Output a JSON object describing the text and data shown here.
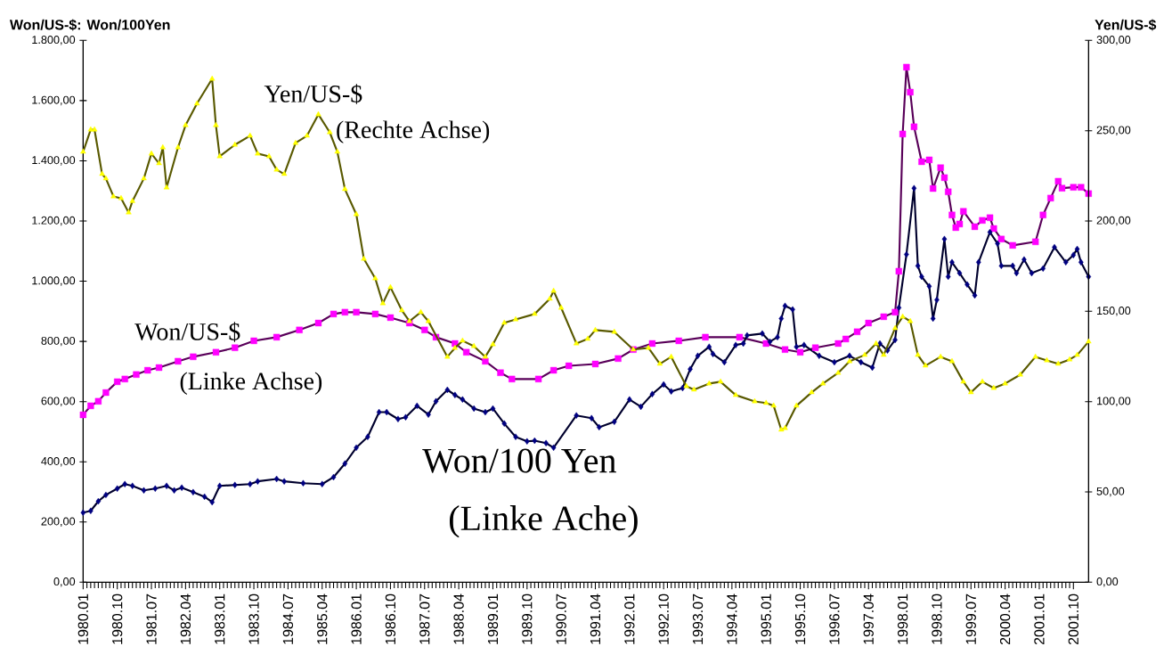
{
  "chart_data": {
    "type": "line",
    "ylabel": "Won/US-$: Won/100Yen",
    "y2label": "Yen/US-$",
    "annotations": [
      "(Rechte Achse)",
      "(Linke Achse)",
      "(Linke Ache)"
    ],
    "xlim": [
      "1980-01",
      "2002-02"
    ],
    "xticks": [
      {
        "value": "1980-01",
        "label": "1980.01"
      },
      {
        "value": "1980-10",
        "label": "1980.10"
      },
      {
        "value": "1981-07",
        "label": "1981.07"
      },
      {
        "value": "1982-04",
        "label": "1982.04"
      },
      {
        "value": "1983-01",
        "label": "1983.01"
      },
      {
        "value": "1983-10",
        "label": "1983.10"
      },
      {
        "value": "1984-07",
        "label": "1984.07"
      },
      {
        "value": "1985-04",
        "label": "1985.04"
      },
      {
        "value": "1986-01",
        "label": "1986.01"
      },
      {
        "value": "1986-10",
        "label": "1986.10"
      },
      {
        "value": "1987-07",
        "label": "1987.07"
      },
      {
        "value": "1988-04",
        "label": "1988.04"
      },
      {
        "value": "1989-01",
        "label": "1989.01"
      },
      {
        "value": "1989-10",
        "label": "1989.10"
      },
      {
        "value": "1990-07",
        "label": "1990.07"
      },
      {
        "value": "1991-04",
        "label": "1991.04"
      },
      {
        "value": "1992-01",
        "label": "1992.01"
      },
      {
        "value": "1992-10",
        "label": "1992.10"
      },
      {
        "value": "1993-07",
        "label": "1993.07"
      },
      {
        "value": "1994-04",
        "label": "1994.04"
      },
      {
        "value": "1995-01",
        "label": "1995.01"
      },
      {
        "value": "1995-10",
        "label": "1995.10"
      },
      {
        "value": "1996-07",
        "label": "1996.07"
      },
      {
        "value": "1997-04",
        "label": "1997.04"
      },
      {
        "value": "1998-01",
        "label": "1998.01"
      },
      {
        "value": "1998-10",
        "label": "1998.10"
      },
      {
        "value": "1999-07",
        "label": "1999.07"
      },
      {
        "value": "2000-04",
        "label": "2000.04"
      },
      {
        "value": "2001-01",
        "label": "2001.01"
      },
      {
        "value": "2001-10",
        "label": "2001.10"
      }
    ],
    "ylim": [
      0,
      1800
    ],
    "yticks": [
      {
        "value": 0,
        "label": "0,00"
      },
      {
        "value": 200,
        "label": "200,00"
      },
      {
        "value": 400,
        "label": "400,00"
      },
      {
        "value": 600,
        "label": "600,00"
      },
      {
        "value": 800,
        "label": "800,00"
      },
      {
        "value": 1000,
        "label": "1.000,00"
      },
      {
        "value": 1200,
        "label": "1.200,00"
      },
      {
        "value": 1400,
        "label": "1.400,00"
      },
      {
        "value": 1600,
        "label": "1.600,00"
      },
      {
        "value": 1800,
        "label": "1.800,00"
      }
    ],
    "y2lim": [
      0,
      300
    ],
    "y2ticks": [
      {
        "value": 0,
        "label": "0,00"
      },
      {
        "value": 50,
        "label": "50,00"
      },
      {
        "value": 100,
        "label": "100,00"
      },
      {
        "value": 150,
        "label": "150,00"
      },
      {
        "value": 200,
        "label": "200,00"
      },
      {
        "value": 250,
        "label": "250,00"
      },
      {
        "value": 300,
        "label": "300,00"
      }
    ],
    "series": [
      {
        "name": "Yen/US-$",
        "color": "#ffff00",
        "axis": "y2",
        "marker": "triangle",
        "x": [
          "1980-01",
          "1980-03",
          "1980-04",
          "1980-06",
          "1980-07",
          "1980-09",
          "1980-11",
          "1981-01",
          "1981-02",
          "1981-05",
          "1981-07",
          "1981-09",
          "1981-10",
          "1981-11",
          "1982-02",
          "1982-04",
          "1982-07",
          "1982-11",
          "1982-12",
          "1983-01",
          "1983-05",
          "1983-09",
          "1983-11",
          "1984-02",
          "1984-04",
          "1984-06",
          "1984-09",
          "1984-12",
          "1985-03",
          "1985-06",
          "1985-08",
          "1985-10",
          "1986-01",
          "1986-03",
          "1986-06",
          "1986-08",
          "1986-10",
          "1987-01",
          "1987-03",
          "1987-06",
          "1987-08",
          "1988-01",
          "1988-03",
          "1988-05",
          "1988-08",
          "1988-11",
          "1989-01",
          "1989-04",
          "1989-07",
          "1989-12",
          "1990-04",
          "1990-05",
          "1990-07",
          "1990-11",
          "1991-02",
          "1991-04",
          "1991-09",
          "1992-02",
          "1992-06",
          "1992-09",
          "1992-12",
          "1993-04",
          "1993-06",
          "1993-10",
          "1994-01",
          "1994-05",
          "1994-10",
          "1995-01",
          "1995-03",
          "1995-05",
          "1995-06",
          "1995-09",
          "1996-01",
          "1996-04",
          "1996-08",
          "1996-11",
          "1997-03",
          "1997-06",
          "1997-08",
          "1997-11",
          "1998-01",
          "1998-03",
          "1998-05",
          "1998-07",
          "1998-11",
          "1999-02",
          "1999-05",
          "1999-07",
          "1999-10",
          "2000-01",
          "2000-04",
          "2000-08",
          "2000-12",
          "2001-03",
          "2001-06",
          "2001-09",
          "2001-11",
          "2002-02"
        ],
        "values": [
          238.3,
          250.6,
          250.6,
          226,
          223.5,
          213.6,
          212.6,
          204.7,
          211,
          223.5,
          237.3,
          231.9,
          240.7,
          218.5,
          240.7,
          253,
          265,
          278.7,
          253,
          235.8,
          242.2,
          247.2,
          237.3,
          235.8,
          228.4,
          226,
          243.2,
          247.2,
          259,
          249.1,
          238.3,
          217.6,
          203.7,
          179,
          168.2,
          154.4,
          163.3,
          150.5,
          144.5,
          149.5,
          144.5,
          124.8,
          129.7,
          133.7,
          130.7,
          124.8,
          131.7,
          143.6,
          145.5,
          148.5,
          156.9,
          161.3,
          151.9,
          132.2,
          134.7,
          139.6,
          138.6,
          128.8,
          129.7,
          120.9,
          124.8,
          108.5,
          106.6,
          110,
          111,
          103.6,
          100.1,
          99.2,
          97.7,
          84.4,
          85.3,
          97.7,
          105.1,
          110,
          115.9,
          122.3,
          125.8,
          132.2,
          125.8,
          140.6,
          147,
          144.5,
          125.8,
          119.9,
          124.8,
          122.3,
          111,
          105.1,
          111,
          107.5,
          110,
          114.9,
          124.8,
          122.8,
          120.9,
          123.3,
          125.8,
          133.2
        ]
      },
      {
        "name": "Won/US-$",
        "color": "#ff00ff",
        "marker": "square",
        "x": [
          "1980-01",
          "1980-03",
          "1980-05",
          "1980-07",
          "1980-10",
          "1980-12",
          "1981-03",
          "1981-06",
          "1981-09",
          "1982-02",
          "1982-06",
          "1982-12",
          "1983-05",
          "1983-10",
          "1984-04",
          "1984-10",
          "1985-03",
          "1985-07",
          "1985-10",
          "1986-01",
          "1986-06",
          "1986-10",
          "1987-03",
          "1987-07",
          "1987-10",
          "1988-03",
          "1988-06",
          "1988-11",
          "1989-03",
          "1989-06",
          "1990-01",
          "1990-05",
          "1990-09",
          "1991-04",
          "1991-10",
          "1992-02",
          "1992-07",
          "1993-02",
          "1993-09",
          "1994-06",
          "1995-01",
          "1995-06",
          "1995-10",
          "1996-02",
          "1996-08",
          "1996-10",
          "1997-01",
          "1997-04",
          "1997-08",
          "1997-11",
          "1997-12",
          "1998-01",
          "1998-02",
          "1998-03",
          "1998-04",
          "1998-06",
          "1998-08",
          "1998-09",
          "1998-11",
          "1998-12",
          "1999-01",
          "1999-02",
          "1999-03",
          "1999-04",
          "1999-05",
          "1999-08",
          "1999-10",
          "1999-12",
          "2000-01",
          "2000-03",
          "2000-06",
          "2000-12",
          "2001-02",
          "2001-04",
          "2001-06",
          "2001-07",
          "2001-10",
          "2001-12",
          "2002-02"
        ],
        "values": [
          556,
          586,
          601,
          630,
          666,
          675,
          690,
          704,
          713,
          734,
          749,
          764,
          779,
          802,
          814,
          838,
          861,
          891,
          897,
          897,
          891,
          879,
          861,
          838,
          814,
          793,
          764,
          734,
          696,
          675,
          675,
          704,
          719,
          725,
          743,
          773,
          793,
          802,
          814,
          814,
          793,
          773,
          764,
          779,
          793,
          808,
          832,
          861,
          882,
          897,
          1033,
          1489,
          1711,
          1628,
          1513,
          1397,
          1403,
          1308,
          1377,
          1344,
          1297,
          1220,
          1178,
          1190,
          1232,
          1181,
          1202,
          1211,
          1175,
          1140,
          1119,
          1131,
          1220,
          1276,
          1332,
          1309,
          1312,
          1312,
          1291
        ]
      },
      {
        "name": "Won/100 Yen",
        "color": "#000080",
        "marker": "diamond",
        "x": [
          "1980-01",
          "1980-03",
          "1980-05",
          "1980-07",
          "1980-10",
          "1980-12",
          "1981-02",
          "1981-05",
          "1981-08",
          "1981-11",
          "1982-01",
          "1982-03",
          "1982-06",
          "1982-09",
          "1982-11",
          "1983-01",
          "1983-05",
          "1983-09",
          "1983-11",
          "1984-04",
          "1984-06",
          "1984-11",
          "1985-04",
          "1985-07",
          "1985-10",
          "1986-01",
          "1986-04",
          "1986-07",
          "1986-09",
          "1986-12",
          "1987-02",
          "1987-05",
          "1987-08",
          "1987-10",
          "1988-01",
          "1988-03",
          "1988-05",
          "1988-08",
          "1988-11",
          "1989-01",
          "1989-04",
          "1989-07",
          "1989-10",
          "1989-12",
          "1990-03",
          "1990-05",
          "1990-11",
          "1991-03",
          "1991-05",
          "1991-09",
          "1992-01",
          "1992-04",
          "1992-07",
          "1992-10",
          "1992-12",
          "1993-03",
          "1993-05",
          "1993-07",
          "1993-10",
          "1993-11",
          "1994-02",
          "1994-05",
          "1994-07",
          "1994-08",
          "1994-12",
          "1995-02",
          "1995-04",
          "1995-05",
          "1995-06",
          "1995-08",
          "1995-09",
          "1995-11",
          "1996-03",
          "1996-07",
          "1996-11",
          "1997-02",
          "1997-05",
          "1997-07",
          "1997-09",
          "1997-11",
          "1997-12",
          "1998-02",
          "1998-04",
          "1998-05",
          "1998-06",
          "1998-08",
          "1998-09",
          "1998-10",
          "1998-12",
          "1999-01",
          "1999-02",
          "1999-04",
          "1999-06",
          "1999-08",
          "1999-09",
          "1999-12",
          "2000-02",
          "2000-03",
          "2000-06",
          "2000-07",
          "2000-09",
          "2000-11",
          "2001-02",
          "2001-05",
          "2001-08",
          "2001-10",
          "2001-11",
          "2001-12",
          "2002-02"
        ],
        "values": [
          231,
          237,
          269,
          290,
          311,
          326,
          320,
          305,
          311,
          320,
          305,
          314,
          299,
          284,
          266,
          320,
          323,
          326,
          335,
          343,
          335,
          329,
          326,
          349,
          394,
          447,
          483,
          565,
          565,
          542,
          548,
          586,
          557,
          601,
          639,
          622,
          607,
          577,
          565,
          577,
          527,
          483,
          468,
          470,
          462,
          447,
          554,
          545,
          515,
          533,
          607,
          583,
          625,
          657,
          634,
          645,
          708,
          752,
          782,
          758,
          731,
          788,
          793,
          820,
          826,
          799,
          814,
          876,
          918,
          906,
          782,
          788,
          752,
          731,
          752,
          731,
          713,
          793,
          770,
          805,
          912,
          1089,
          1309,
          1051,
          1015,
          983,
          876,
          938,
          1140,
          1015,
          1063,
          1027,
          989,
          953,
          1063,
          1163,
          1125,
          1051,
          1051,
          1027,
          1072,
          1027,
          1042,
          1113,
          1063,
          1087,
          1107,
          1063,
          1015
        ]
      }
    ]
  }
}
